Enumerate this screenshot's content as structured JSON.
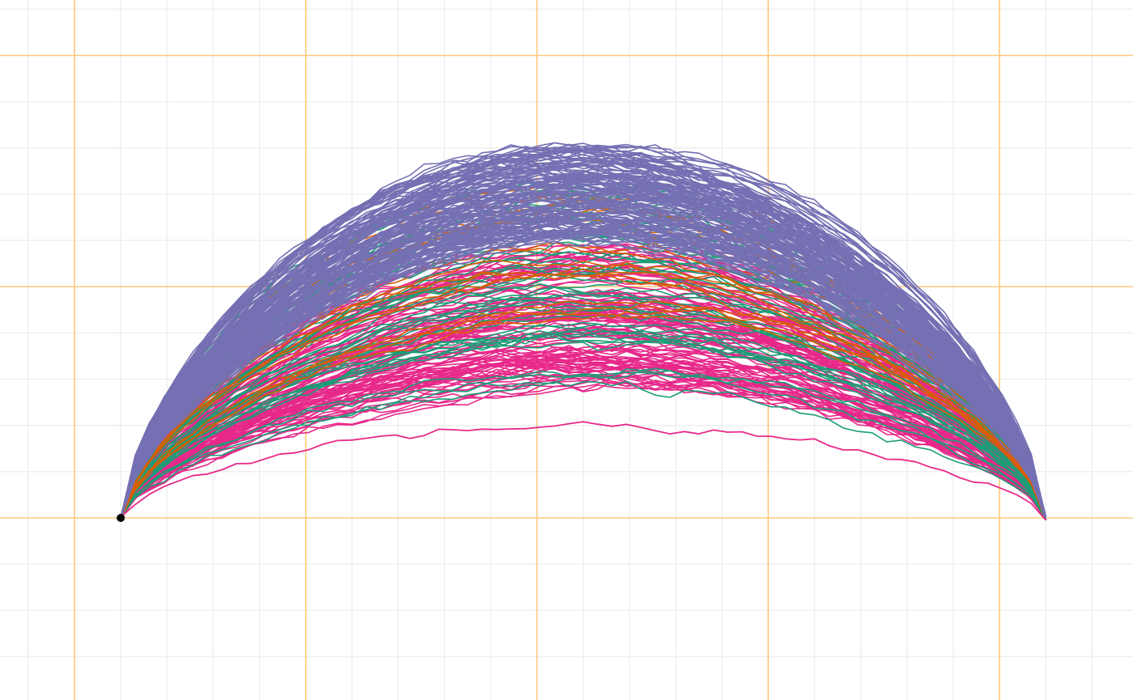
{
  "chart_data": {
    "type": "line",
    "title": "",
    "xlabel": "",
    "ylabel": "",
    "grid": true,
    "legend": "none",
    "x_range": [
      -0.2,
      2.25
    ],
    "y_range": [
      -0.39,
      1.12
    ],
    "x_major_ticks": [
      0.0,
      0.5,
      1.0,
      1.5,
      2.0
    ],
    "x_minor_step": 0.1,
    "y_major_ticks": [
      0.0,
      0.5,
      1.0
    ],
    "y_minor_step": 0.1,
    "start_point": [
      0.1,
      0.0
    ],
    "end_x": 2.1,
    "n_steps": 64,
    "colors": {
      "major_grid": "#ffc87a",
      "minor_grid": "#eeeeee",
      "start_marker": "#000000"
    },
    "series": [
      {
        "color": "#7570b3",
        "count": 150,
        "peak_range": [
          0.6,
          0.8
        ],
        "seed": 11
      },
      {
        "color": "#1b9e77",
        "count": 45,
        "peak_range": [
          0.27,
          0.73
        ],
        "seed": 23
      },
      {
        "color": "#d95f02",
        "count": 18,
        "peak_range": [
          0.45,
          0.75
        ],
        "seed": 37
      },
      {
        "color": "#e7298a",
        "count": 110,
        "peak_range": [
          0.28,
          0.58
        ],
        "seed": 53
      }
    ],
    "outliers": [
      {
        "color": "#7570b3",
        "peak": 0.8
      },
      {
        "color": "#e7298a",
        "peak": 0.2
      }
    ]
  }
}
